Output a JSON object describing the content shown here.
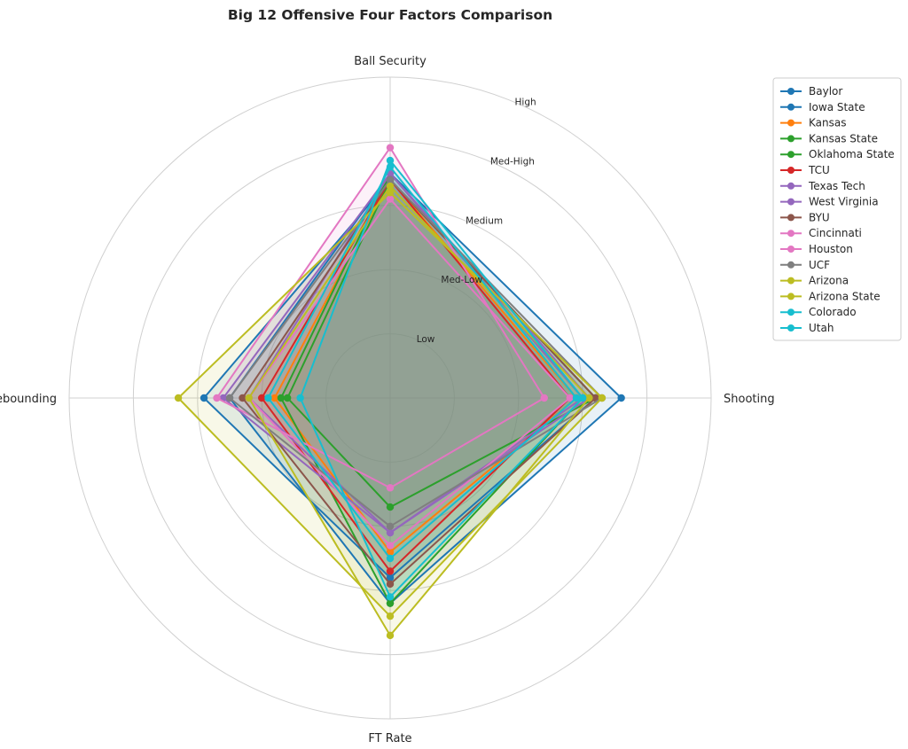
{
  "chart_data": {
    "type": "radar",
    "title": "Big 12 Offensive Four Factors Comparison",
    "axes": [
      "Ball Security",
      "Shooting",
      "FT Rate",
      "Off Rebounding"
    ],
    "rlim": [
      0,
      5
    ],
    "rings": [
      1,
      2,
      3,
      4,
      5
    ],
    "ring_labels": [
      {
        "r": 1,
        "label": "Low"
      },
      {
        "r": 2,
        "label": "Med-Low"
      },
      {
        "r": 3,
        "label": "Medium"
      },
      {
        "r": 4,
        "label": "Med-High"
      },
      {
        "r": 5,
        "label": "High"
      }
    ],
    "grid": true,
    "legend_position": "upper-right-outside",
    "series": [
      {
        "name": "Baylor",
        "color": "#1f77b4",
        "values": [
          3.4,
          3.2,
          2.8,
          2.9
        ]
      },
      {
        "name": "Iowa State",
        "color": "#1f77b4",
        "values": [
          3.5,
          3.6,
          3.2,
          2.5
        ]
      },
      {
        "name": "Kansas",
        "color": "#ff7f0e",
        "values": [
          3.4,
          2.9,
          2.4,
          1.8
        ]
      },
      {
        "name": "Kansas State",
        "color": "#2ca02c",
        "values": [
          3.5,
          3.0,
          3.2,
          1.7
        ]
      },
      {
        "name": "Oklahoma State",
        "color": "#2ca02c",
        "values": [
          3.4,
          3.2,
          1.7,
          1.6
        ]
      },
      {
        "name": "TCU",
        "color": "#d62728",
        "values": [
          3.4,
          2.8,
          2.7,
          2.0
        ]
      },
      {
        "name": "Texas Tech",
        "color": "#9467bd",
        "values": [
          3.5,
          3.0,
          2.1,
          2.2
        ]
      },
      {
        "name": "West Virginia",
        "color": "#9467bd",
        "values": [
          3.5,
          3.1,
          2.1,
          2.6
        ]
      },
      {
        "name": "BYU",
        "color": "#8c564b",
        "values": [
          3.4,
          3.2,
          2.9,
          2.3
        ]
      },
      {
        "name": "Cincinnati",
        "color": "#e377c2",
        "values": [
          3.1,
          2.8,
          2.3,
          2.2
        ]
      },
      {
        "name": "Houston",
        "color": "#e377c2",
        "values": [
          3.9,
          2.4,
          1.4,
          2.7
        ]
      },
      {
        "name": "UCF",
        "color": "#7f7f7f",
        "values": [
          3.4,
          3.3,
          2.0,
          2.5
        ]
      },
      {
        "name": "Arizona",
        "color": "#bcbd22",
        "values": [
          3.2,
          3.3,
          3.4,
          3.3
        ]
      },
      {
        "name": "Arizona State",
        "color": "#bcbd22",
        "values": [
          3.3,
          3.1,
          3.7,
          2.2
        ]
      },
      {
        "name": "Colorado",
        "color": "#17becf",
        "values": [
          3.6,
          2.9,
          2.5,
          1.9
        ]
      },
      {
        "name": "Utah",
        "color": "#17becf",
        "values": [
          3.7,
          3.0,
          3.1,
          1.4
        ]
      }
    ]
  }
}
